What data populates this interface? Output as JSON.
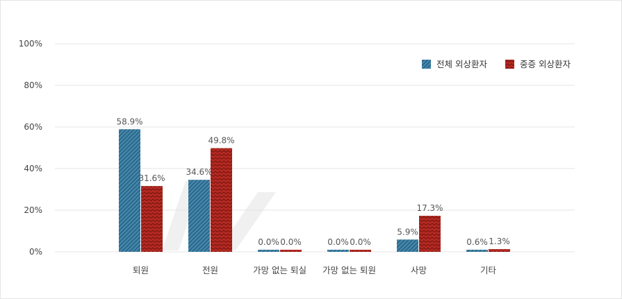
{
  "colors": {
    "series_1": "#2c6a8c",
    "series_2": "#b52a22",
    "grid": "#e4e4e4",
    "watermark": "#f0f0f0"
  },
  "chart_data": {
    "type": "bar",
    "categories": [
      "퇴원",
      "전원",
      "가망 없는 퇴실",
      "가망 없는 퇴원",
      "사망",
      "기타"
    ],
    "series": [
      {
        "name": "전체 외상환자",
        "values": [
          58.9,
          34.6,
          0.0,
          0.0,
          5.9,
          0.6
        ],
        "labels": [
          "58.9%",
          "34.6%",
          "0.0%",
          "0.0%",
          "5.9%",
          "0.6%"
        ],
        "pattern": "diagonal-stripes"
      },
      {
        "name": "중증 외상환자",
        "values": [
          31.6,
          49.8,
          0.0,
          0.0,
          17.3,
          1.3
        ],
        "labels": [
          "31.6%",
          "49.8%",
          "0.0%",
          "0.0%",
          "17.3%",
          "1.3%"
        ],
        "pattern": "zigzag"
      }
    ],
    "y_ticks": [
      "0%",
      "20%",
      "40%",
      "60%",
      "80%",
      "100%"
    ],
    "ylim": [
      0,
      100
    ],
    "grid": true,
    "legend_position": "top-right",
    "title": "",
    "xlabel": "",
    "ylabel": ""
  }
}
